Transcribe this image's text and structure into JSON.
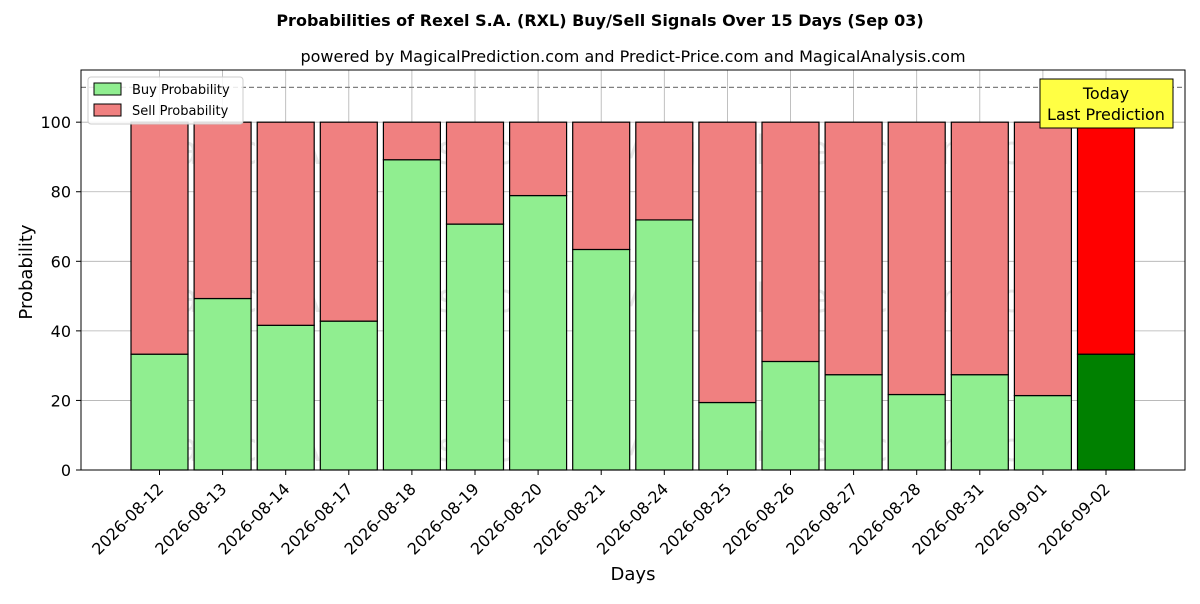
{
  "chart_data": {
    "type": "bar",
    "stacked": true,
    "title": "Probabilities of Rexel S.A. (RXL) Buy/Sell Signals Over 15 Days (Sep 03)",
    "subtitle": "powered by MagicalPrediction.com and Predict-Price.com and MagicalAnalysis.com",
    "xlabel": "Days",
    "ylabel": "Probability",
    "ylim": [
      0,
      115
    ],
    "yticks": [
      0,
      20,
      40,
      60,
      80,
      100
    ],
    "grid": true,
    "legend_position": "top-left",
    "reference_line": 110,
    "categories": [
      "2026-08-12",
      "2026-08-13",
      "2026-08-14",
      "2026-08-17",
      "2026-08-18",
      "2026-08-19",
      "2026-08-20",
      "2026-08-21",
      "2026-08-24",
      "2026-08-25",
      "2026-08-26",
      "2026-08-27",
      "2026-08-28",
      "2026-08-31",
      "2026-09-01",
      "2026-09-02"
    ],
    "series": [
      {
        "name": "Buy Probability",
        "color": "#90ee90",
        "highlight_color": "#008000",
        "values": [
          33.3,
          49.3,
          41.6,
          42.8,
          89.2,
          70.7,
          78.9,
          63.4,
          71.9,
          19.4,
          31.2,
          27.4,
          21.7,
          27.4,
          21.4,
          33.3
        ]
      },
      {
        "name": "Sell Probability",
        "color": "#f08080",
        "highlight_color": "#ff0000",
        "values": [
          66.7,
          50.7,
          58.4,
          57.2,
          10.8,
          29.3,
          21.1,
          36.6,
          28.1,
          80.6,
          68.8,
          72.6,
          78.3,
          72.6,
          78.6,
          66.7
        ]
      }
    ],
    "annotation": {
      "lines": [
        "Today",
        "Last Prediction"
      ],
      "background": "#ffff44"
    },
    "watermarks": [
      "MagicalAnalysis.com",
      "MagicalPrediction.com"
    ]
  }
}
